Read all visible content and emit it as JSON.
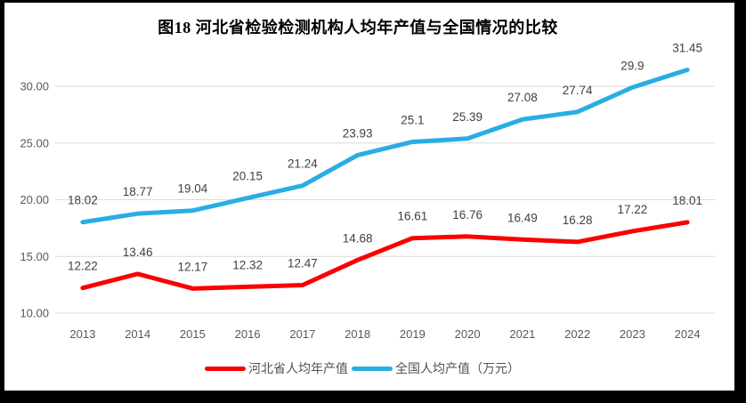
{
  "chart_data": {
    "type": "line",
    "title": "图18 河北省检验检测机构人均年产值与全国情况的比较",
    "categories": [
      "2013",
      "2014",
      "2015",
      "2016",
      "2017",
      "2018",
      "2019",
      "2020",
      "2021",
      "2022",
      "2023",
      "2024"
    ],
    "series": [
      {
        "name": "河北省人均年产值",
        "color": "#FB0000",
        "values": [
          12.22,
          13.46,
          12.17,
          12.32,
          12.47,
          14.68,
          16.61,
          16.76,
          16.49,
          16.28,
          17.22,
          18.01
        ]
      },
      {
        "name": "全国人均产值（万元）",
        "color": "#29ADE3",
        "values": [
          18.02,
          18.77,
          19.04,
          20.15,
          21.24,
          23.93,
          25.1,
          25.39,
          27.08,
          27.74,
          29.9,
          31.45
        ]
      }
    ],
    "y_ticks": [
      {
        "value": 10,
        "label": "10.00"
      },
      {
        "value": 15,
        "label": "15.00"
      },
      {
        "value": 20,
        "label": "20.00"
      },
      {
        "value": 25,
        "label": "25.00"
      },
      {
        "value": 30,
        "label": "30.00"
      }
    ],
    "ylim": [
      10,
      32
    ],
    "grid": true,
    "legend_position": "bottom",
    "data_labels": true,
    "styles": {
      "grid_color": "#D9D9D9",
      "axis_label_color": "#595959",
      "data_label_color": "#404040",
      "background_color": "#FFFFFF",
      "frame_color": "#000000"
    }
  }
}
